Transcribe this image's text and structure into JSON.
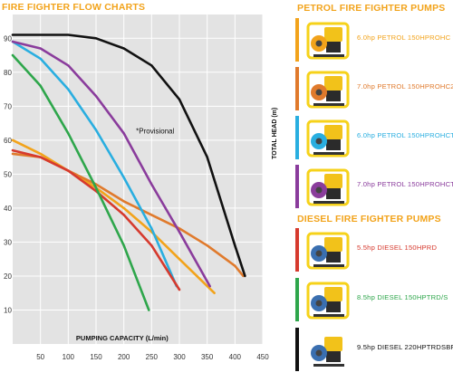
{
  "colors": {
    "accent": "#f2a31b"
  },
  "chart_title": "FIRE FIGHTER FLOW CHARTS",
  "petrol_title": "PETROL FIRE FIGHTER PUMPS",
  "diesel_title": "DIESEL FIRE FIGHTER PUMPS",
  "chart_data": {
    "type": "line",
    "title": "FIRE FIGHTER FLOW CHARTS",
    "xlabel": "PUMPING CAPACITY (L/min)",
    "ylabel": "TOTAL HEAD (m)",
    "xlim": [
      0,
      450
    ],
    "ylim": [
      0,
      97
    ],
    "x_ticks": [
      50,
      100,
      150,
      200,
      250,
      300,
      350,
      400,
      450
    ],
    "y_ticks": [
      10,
      20,
      30,
      40,
      50,
      60,
      70,
      80,
      90
    ],
    "grid": true,
    "annotation": "*Provisional",
    "series": [
      {
        "color": "#f2a31b",
        "x": [
          0,
          50,
          100,
          150,
          200,
          250,
          300,
          363
        ],
        "y": [
          60,
          56,
          51,
          46,
          40,
          33,
          25,
          15
        ]
      },
      {
        "color": "#e07a2c",
        "x": [
          0,
          50,
          100,
          150,
          200,
          250,
          300,
          350,
          400,
          415
        ],
        "y": [
          56,
          55,
          51,
          47,
          42,
          38,
          34,
          29,
          23,
          20
        ]
      },
      {
        "color": "#29aee0",
        "x": [
          0,
          50,
          100,
          150,
          200,
          250,
          295
        ],
        "y": [
          89,
          84,
          75,
          63,
          49,
          34,
          17
        ]
      },
      {
        "color": "#8a3c9c",
        "x": [
          0,
          50,
          100,
          150,
          200,
          250,
          300,
          355
        ],
        "y": [
          89,
          87,
          82,
          73,
          62,
          47,
          33,
          17
        ]
      },
      {
        "color": "#d63a2e",
        "x": [
          0,
          50,
          100,
          150,
          200,
          250,
          300
        ],
        "y": [
          57,
          55,
          51,
          45,
          38,
          29,
          16
        ]
      },
      {
        "color": "#2ea64b",
        "x": [
          0,
          50,
          100,
          150,
          200,
          245
        ],
        "y": [
          85,
          76,
          62,
          46,
          29,
          10
        ]
      },
      {
        "color": "#111111",
        "x": [
          0,
          50,
          100,
          150,
          200,
          250,
          300,
          350,
          400,
          418
        ],
        "y": [
          91,
          91,
          91,
          90,
          87,
          82,
          72,
          55,
          29,
          20
        ]
      }
    ]
  },
  "petrol_pumps": [
    {
      "label": "6.0hp PETROL 150HPROHC",
      "color": "#f2a31b",
      "image": "petrol-pump-image"
    },
    {
      "label": "7.0hp PETROL 150HPROHC21",
      "color": "#e07a2c",
      "image": "petrol-pump-image"
    },
    {
      "label": "6.0hp PETROL 150HPROHCT",
      "color": "#29aee0",
      "image": "petrol-pump-image"
    },
    {
      "label": "7.0hp PETROL 150HPROHCT21",
      "color": "#8a3c9c",
      "image": "petrol-pump-image"
    }
  ],
  "diesel_pumps": [
    {
      "label": "5.5hp DIESEL 150HPRD",
      "color": "#d63a2e",
      "image": "diesel-pump-frame-image"
    },
    {
      "label": "8.5hp DIESEL 150HPTRD/S",
      "color": "#2ea64b",
      "image": "diesel-pump-frame-image"
    },
    {
      "label": "9.5hp DIESEL 220HPTRDSBF",
      "color": "#111111",
      "image": "diesel-pump-image"
    }
  ]
}
